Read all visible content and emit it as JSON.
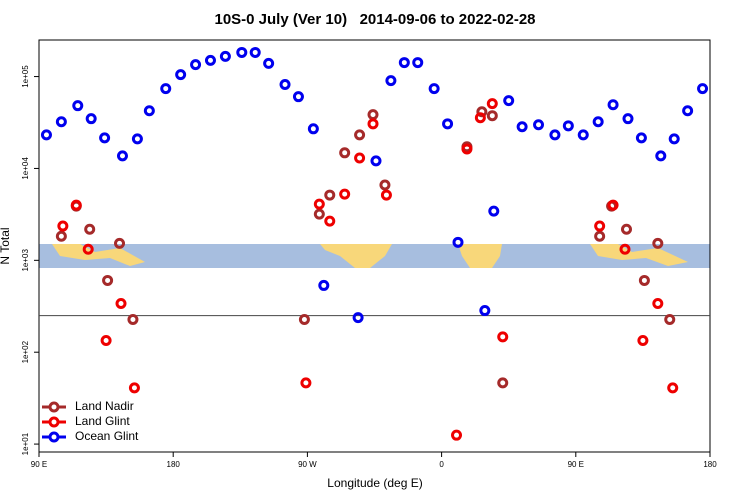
{
  "chart_data": {
    "type": "scatter",
    "title": "10S-0 July (Ver 10)   2014-09-06 to 2022-02-28",
    "x_label": "Longitude (deg E)",
    "y_label": "N Total",
    "ylog": true,
    "xlim": [
      90,
      540
    ],
    "ylim": [
      8.2,
      250000
    ],
    "xticks": [
      {
        "value": 90,
        "label": "90 E"
      },
      {
        "value": 180,
        "label": "180"
      },
      {
        "value": 270,
        "label": "90 W"
      },
      {
        "value": 360,
        "label": "0"
      },
      {
        "value": 450,
        "label": "90 E"
      },
      {
        "value": 540,
        "label": "180"
      }
    ],
    "yticks": [
      {
        "value": 10,
        "label": "1e+01"
      },
      {
        "value": 100,
        "label": "1e+02"
      },
      {
        "value": 1000,
        "label": "1e+03"
      },
      {
        "value": 10000,
        "label": "1e+04"
      },
      {
        "value": 100000,
        "label": "1e+05"
      }
    ],
    "hline": 250,
    "legend": "bottom-left",
    "series": [
      {
        "name": "Land Nadir",
        "color": "#a52a2a",
        "x": [
          105,
          115,
          124,
          136,
          144,
          153,
          268,
          278,
          285,
          295,
          305,
          314,
          322,
          377,
          387,
          394,
          401,
          466,
          474,
          484,
          496,
          505,
          513
        ],
        "values": [
          1830,
          3890,
          2180,
          604,
          1530,
          227,
          227,
          3180,
          5130,
          14800,
          23200,
          38500,
          6610,
          17200,
          41400,
          37500,
          46.4,
          1830,
          3890,
          2180,
          604,
          1530,
          227
        ]
      },
      {
        "name": "Land Glint",
        "color": "#ee0000",
        "x": [
          106,
          115,
          123,
          135,
          145,
          154,
          269,
          278,
          285,
          295,
          305,
          314,
          323,
          370,
          377,
          386,
          394,
          401,
          466,
          475,
          483,
          495,
          505,
          515
        ],
        "values": [
          2360,
          3990,
          1320,
          134,
          339,
          40.9,
          46.4,
          4090,
          2670,
          5260,
          13000,
          30600,
          5130,
          12.5,
          16300,
          35600,
          50700,
          147,
          2360,
          3990,
          1320,
          134,
          339,
          40.9
        ]
      },
      {
        "name": "Ocean Glint",
        "color": "#0000ee",
        "x": [
          95,
          105,
          116,
          125,
          134,
          146,
          156,
          164,
          175,
          185,
          195,
          205,
          215,
          226,
          235,
          244,
          255,
          264,
          274,
          281,
          304,
          316,
          326,
          335,
          344,
          355,
          364,
          371,
          389,
          395,
          405,
          414,
          425,
          436,
          445,
          455,
          465,
          475,
          485,
          494,
          507,
          516,
          525,
          535
        ],
        "values": [
          23200,
          32200,
          48200,
          34800,
          21500,
          13700,
          21000,
          42500,
          74000,
          105000,
          135000,
          150000,
          166000,
          183000,
          183000,
          139000,
          82000,
          60400,
          27000,
          533,
          238,
          12100,
          90400,
          142000,
          142000,
          74000,
          30600,
          1570,
          284,
          3430,
          54700,
          28400,
          29900,
          23200,
          29100,
          23200,
          32200,
          49400,
          34800,
          21500,
          13700,
          21000,
          42500,
          74000
        ]
      }
    ]
  }
}
